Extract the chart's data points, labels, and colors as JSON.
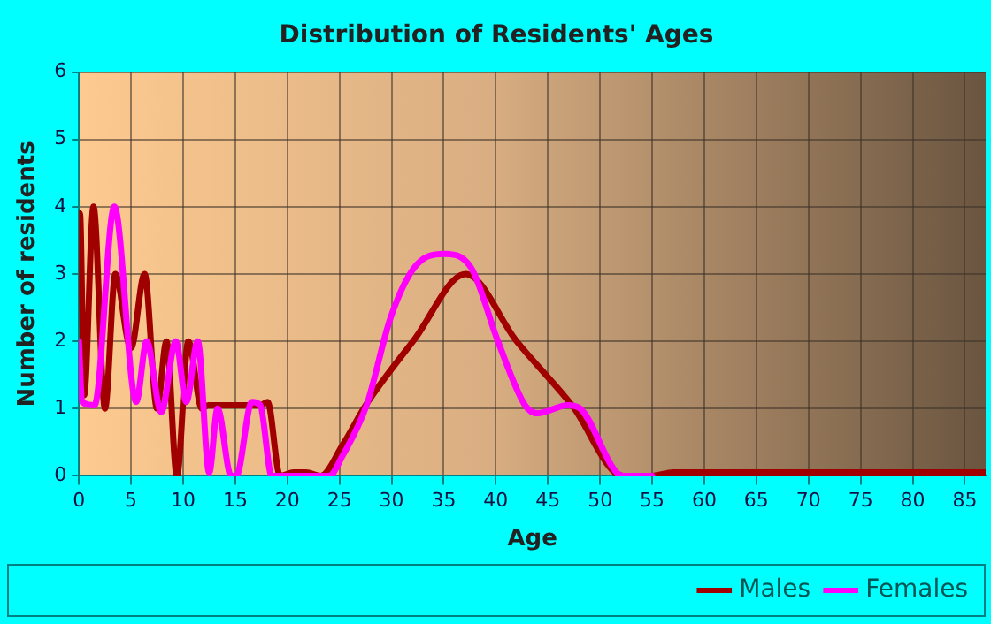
{
  "chart_data": {
    "type": "line",
    "title": "Distribution of Residents' Ages",
    "xlabel": "Age",
    "ylabel": "Number of residents",
    "xlim": [
      0,
      87
    ],
    "xticks": [
      0,
      5,
      10,
      15,
      20,
      25,
      30,
      35,
      40,
      45,
      50,
      55,
      60,
      65,
      70,
      75,
      80,
      85
    ],
    "ylim": [
      0,
      6
    ],
    "yticks": [
      0,
      1,
      2,
      3,
      4,
      5,
      6
    ],
    "grid": true,
    "legend": "bottom",
    "marker": "none",
    "line_style": "solid",
    "series": [
      {
        "name": "Males",
        "color": "#a00000",
        "x": [
          0,
          0.1,
          0.5,
          1.4,
          2.5,
          3.5,
          4.7,
          5.0,
          6.3,
          7.5,
          8.4,
          9.4,
          10.5,
          11.8,
          12.4,
          17.4,
          18.1,
          19.3,
          20.6,
          21.8,
          23.2,
          25.3,
          27.6,
          32.2,
          37.1,
          42,
          47.3,
          52.2,
          55,
          57,
          87
        ],
        "values": [
          3.9,
          3.9,
          1.2,
          4,
          1,
          3,
          2,
          1.9,
          3,
          1,
          2,
          0,
          2,
          1,
          1.05,
          1.05,
          1.1,
          0,
          0.05,
          0.05,
          0,
          0.46,
          1.07,
          2.03,
          3,
          2,
          1.05,
          0,
          0,
          0.05,
          0.05
        ]
      },
      {
        "name": "Females",
        "color": "#ff00ff",
        "x": [
          0,
          0.3,
          1.5,
          3.4,
          5.5,
          6.5,
          7.9,
          9.3,
          10.3,
          11.4,
          12.5,
          13.3,
          14.6,
          15.1,
          16.6,
          17.4,
          18.5,
          24,
          25.3,
          27.6,
          29.9,
          32.2,
          35,
          37.6,
          40.2,
          42.8,
          44,
          46.9,
          48.1,
          52.2,
          55
        ],
        "values": [
          2,
          1.1,
          1.05,
          4,
          1.1,
          2,
          0.95,
          2,
          1.1,
          2,
          0.05,
          1,
          0,
          0,
          1.1,
          1.05,
          0,
          0,
          0.3,
          1.05,
          2.35,
          3.1,
          3.3,
          3.1,
          2,
          1.05,
          0.93,
          1.05,
          1,
          0,
          0
        ]
      }
    ]
  }
}
